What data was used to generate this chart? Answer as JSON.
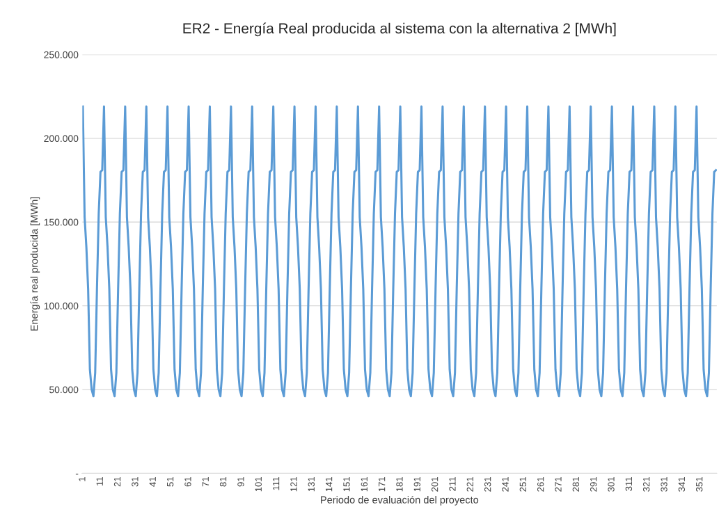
{
  "chart_data": {
    "type": "line",
    "title": "ER2 - Energía Real producida al sistema con la alternativa 2 [MWh]",
    "xlabel": "Periodo de evaluación del proyecto",
    "ylabel": "Energía real producida [MWh]",
    "categories": [
      "1",
      null,
      null,
      null,
      null,
      null,
      null,
      null,
      null,
      null,
      "11",
      null,
      null,
      null,
      null,
      null,
      null,
      null,
      null,
      null,
      "21",
      null,
      null,
      null,
      null,
      null,
      null,
      null,
      null,
      null,
      "31",
      null,
      null,
      null,
      null,
      null,
      null,
      null,
      null,
      null,
      "41",
      null,
      null,
      null,
      null,
      null,
      null,
      null,
      null,
      null,
      "51",
      null,
      null,
      null,
      null,
      null,
      null,
      null,
      null,
      null,
      "61",
      null,
      null,
      null,
      null,
      null,
      null,
      null,
      null,
      null,
      "71",
      null,
      null,
      null,
      null,
      null,
      null,
      null,
      null,
      null,
      "81",
      null,
      null,
      null,
      null,
      null,
      null,
      null,
      null,
      null,
      "91",
      null,
      null,
      null,
      null,
      null,
      null,
      null,
      null,
      null,
      "101",
      null,
      null,
      null,
      null,
      null,
      null,
      null,
      null,
      null,
      "111",
      null,
      null,
      null,
      null,
      null,
      null,
      null,
      null,
      null,
      "121",
      null,
      null,
      null,
      null,
      null,
      null,
      null,
      null,
      null,
      "131",
      null,
      null,
      null,
      null,
      null,
      null,
      null,
      null,
      null,
      "141",
      null,
      null,
      null,
      null,
      null,
      null,
      null,
      null,
      null,
      "151",
      null,
      null,
      null,
      null,
      null,
      null,
      null,
      null,
      null,
      "161",
      null,
      null,
      null,
      null,
      null,
      null,
      null,
      null,
      null,
      "171",
      null,
      null,
      null,
      null,
      null,
      null,
      null,
      null,
      null,
      "181",
      null,
      null,
      null,
      null,
      null,
      null,
      null,
      null,
      null,
      "191",
      null,
      null,
      null,
      null,
      null,
      null,
      null,
      null,
      null,
      "201",
      null,
      null,
      null,
      null,
      null,
      null,
      null,
      null,
      null,
      "211",
      null,
      null,
      null,
      null,
      null,
      null,
      null,
      null,
      null,
      "221",
      null,
      null,
      null,
      null,
      null,
      null,
      null,
      null,
      null,
      "231",
      null,
      null,
      null,
      null,
      null,
      null,
      null,
      null,
      null,
      "241",
      null,
      null,
      null,
      null,
      null,
      null,
      null,
      null,
      null,
      "251",
      null,
      null,
      null,
      null,
      null,
      null,
      null,
      null,
      null,
      "261",
      null,
      null,
      null,
      null,
      null,
      null,
      null,
      null,
      null,
      "271",
      null,
      null,
      null,
      null,
      null,
      null,
      null,
      null,
      null,
      "281",
      null,
      null,
      null,
      null,
      null,
      null,
      null,
      null,
      null,
      "291",
      null,
      null,
      null,
      null,
      null,
      null,
      null,
      null,
      null,
      "301",
      null,
      null,
      null,
      null,
      null,
      null,
      null,
      null,
      null,
      "311",
      null,
      null,
      null,
      null,
      null,
      null,
      null,
      null,
      null,
      "321",
      null,
      null,
      null,
      null,
      null,
      null,
      null,
      null,
      null,
      "331",
      null,
      null,
      null,
      null,
      null,
      null,
      null,
      null,
      null,
      "341",
      null,
      null,
      null,
      null,
      null,
      null,
      null,
      null,
      null,
      "351",
      null,
      null,
      null,
      null,
      null,
      null,
      null,
      null,
      null
    ],
    "series": [
      {
        "color": "#5b9bd5",
        "values": [
          219000,
          153000,
          135000,
          110000,
          62000,
          50000,
          46000,
          60000,
          110000,
          155000,
          180000,
          181000,
          219000,
          153000,
          135000,
          110000,
          62000,
          50000,
          46000,
          60000,
          110000,
          155000,
          180000,
          181000,
          219000,
          153000,
          135000,
          110000,
          62000,
          50000,
          46000,
          60000,
          110000,
          155000,
          180000,
          181000,
          219000,
          153000,
          135000,
          110000,
          62000,
          50000,
          46000,
          60000,
          110000,
          155000,
          180000,
          181000,
          219000,
          153000,
          135000,
          110000,
          62000,
          50000,
          46000,
          60000,
          110000,
          155000,
          180000,
          181000,
          219000,
          153000,
          135000,
          110000,
          62000,
          50000,
          46000,
          60000,
          110000,
          155000,
          180000,
          181000,
          219000,
          153000,
          135000,
          110000,
          62000,
          50000,
          46000,
          60000,
          110000,
          155000,
          180000,
          181000,
          219000,
          153000,
          135000,
          110000,
          62000,
          50000,
          46000,
          60000,
          110000,
          155000,
          180000,
          181000,
          219000,
          153000,
          135000,
          110000,
          62000,
          50000,
          46000,
          60000,
          110000,
          155000,
          180000,
          181000,
          219000,
          153000,
          135000,
          110000,
          62000,
          50000,
          46000,
          60000,
          110000,
          155000,
          180000,
          181000,
          219000,
          153000,
          135000,
          110000,
          62000,
          50000,
          46000,
          60000,
          110000,
          155000,
          180000,
          181000,
          219000,
          153000,
          135000,
          110000,
          62000,
          50000,
          46000,
          60000,
          110000,
          155000,
          180000,
          181000,
          219000,
          153000,
          135000,
          110000,
          62000,
          50000,
          46000,
          60000,
          110000,
          155000,
          180000,
          181000,
          219000,
          153000,
          135000,
          110000,
          62000,
          50000,
          46000,
          60000,
          110000,
          155000,
          180000,
          181000,
          219000,
          153000,
          135000,
          110000,
          62000,
          50000,
          46000,
          60000,
          110000,
          155000,
          180000,
          181000,
          219000,
          153000,
          135000,
          110000,
          62000,
          50000,
          46000,
          60000,
          110000,
          155000,
          180000,
          181000,
          219000,
          153000,
          135000,
          110000,
          62000,
          50000,
          46000,
          60000,
          110000,
          155000,
          180000,
          181000,
          219000,
          153000,
          135000,
          110000,
          62000,
          50000,
          46000,
          60000,
          110000,
          155000,
          180000,
          181000,
          219000,
          153000,
          135000,
          110000,
          62000,
          50000,
          46000,
          60000,
          110000,
          155000,
          180000,
          181000,
          219000,
          153000,
          135000,
          110000,
          62000,
          50000,
          46000,
          60000,
          110000,
          155000,
          180000,
          181000,
          219000,
          153000,
          135000,
          110000,
          62000,
          50000,
          46000,
          60000,
          110000,
          155000,
          180000,
          181000,
          219000,
          153000,
          135000,
          110000,
          62000,
          50000,
          46000,
          60000,
          110000,
          155000,
          180000,
          181000,
          219000,
          153000,
          135000,
          110000,
          62000,
          50000,
          46000,
          60000,
          110000,
          155000,
          180000,
          181000,
          219000,
          153000,
          135000,
          110000,
          62000,
          50000,
          46000,
          60000,
          110000,
          155000,
          180000,
          181000,
          219000,
          153000,
          135000,
          110000,
          62000,
          50000,
          46000,
          60000,
          110000,
          155000,
          180000,
          181000,
          219000,
          153000,
          135000,
          110000,
          62000,
          50000,
          46000,
          60000,
          110000,
          155000,
          180000,
          181000,
          219000,
          153000,
          135000,
          110000,
          62000,
          50000,
          46000,
          60000,
          110000,
          155000,
          180000,
          181000,
          219000,
          153000,
          135000,
          110000,
          62000,
          50000,
          46000,
          60000,
          110000,
          155000,
          180000,
          181000,
          219000,
          153000,
          135000,
          110000,
          62000,
          50000,
          46000,
          60000,
          110000,
          155000,
          180000,
          181000,
          219000,
          153000,
          135000,
          110000,
          62000,
          50000,
          46000,
          60000,
          110000,
          155000,
          180000,
          181000
        ]
      }
    ],
    "ylim": [
      0,
      250000
    ],
    "yticks": [
      {
        "value": 0,
        "label": "-"
      },
      {
        "value": 50000,
        "label": "50.000"
      },
      {
        "value": 100000,
        "label": "100.000"
      },
      {
        "value": 150000,
        "label": "150.000"
      },
      {
        "value": 200000,
        "label": "200.000"
      },
      {
        "value": 250000,
        "label": "250.000"
      }
    ],
    "grid": "y",
    "marker": "none",
    "line_style": "solid"
  }
}
